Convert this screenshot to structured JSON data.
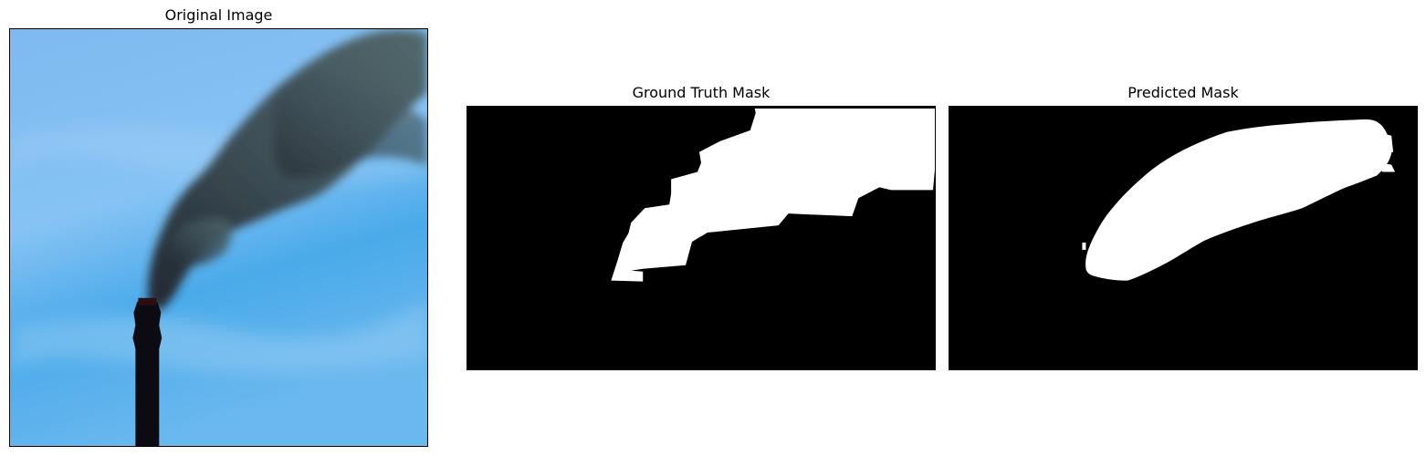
{
  "panels": {
    "original": {
      "title": "Original Image"
    },
    "ground_truth": {
      "title": "Ground Truth Mask"
    },
    "predicted": {
      "title": "Predicted Mask"
    }
  },
  "colors": {
    "sky_top": "#8ec3f2",
    "sky_bottom": "#3aa6ea",
    "smoke": "#2f3a3c",
    "chimney": "#0c0a10",
    "mask_fg": "#ffffff",
    "mask_bg": "#000000"
  }
}
